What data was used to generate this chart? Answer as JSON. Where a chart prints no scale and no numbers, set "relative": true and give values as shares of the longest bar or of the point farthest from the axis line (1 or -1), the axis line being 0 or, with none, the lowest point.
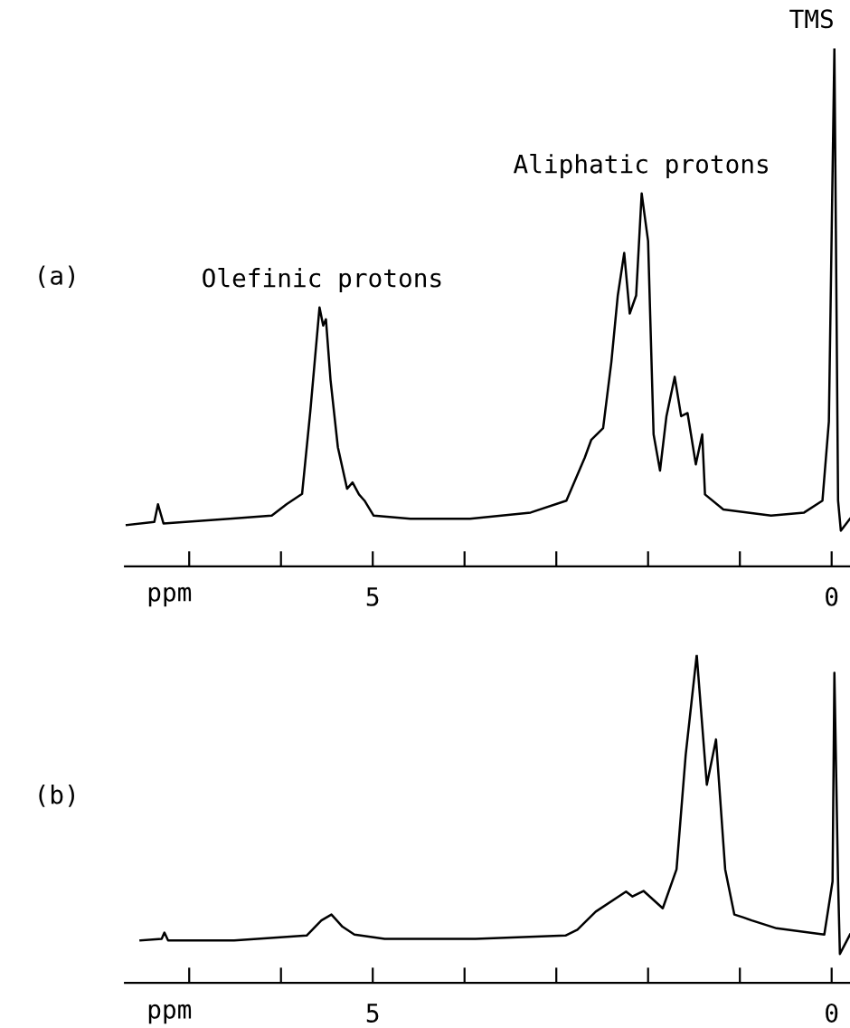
{
  "chart_data": [
    {
      "type": "line",
      "relative": true,
      "xlabel": "ppm",
      "xlim": [
        7.7,
        -0.2
      ],
      "xticks": [
        {
          "value": 7,
          "label": null
        },
        {
          "value": 6,
          "label": null
        },
        {
          "value": 5,
          "label": "5"
        },
        {
          "value": 4,
          "label": null
        },
        {
          "value": 3,
          "label": null
        },
        {
          "value": 2,
          "label": null
        },
        {
          "value": 1,
          "label": null
        },
        {
          "value": 0,
          "label": "0"
        }
      ],
      "tick_labels": "x",
      "grid": false,
      "legend": false,
      "series": [
        {
          "color": "#000000",
          "x": [
            7.68,
            7.38,
            7.34,
            7.28,
            6.56,
            6.1,
            5.94,
            5.77,
            5.68,
            5.58,
            5.54,
            5.51,
            5.46,
            5.38,
            5.28,
            5.22,
            5.15,
            5.09,
            4.99,
            4.59,
            3.94,
            3.28,
            2.89,
            2.69,
            2.62,
            2.49,
            2.4,
            2.33,
            2.26,
            2.2,
            2.13,
            2.07,
            2.0,
            1.94,
            1.87,
            1.8,
            1.71,
            1.64,
            1.57,
            1.48,
            1.41,
            1.38,
            1.18,
            0.66,
            0.3,
            0.1,
            0.03,
            -0.03,
            -0.07,
            -0.1,
            -0.2
          ],
          "values": [
            0.08,
            0.086,
            0.12,
            0.083,
            0.092,
            0.098,
            0.12,
            0.14,
            0.3,
            0.5,
            0.465,
            0.477,
            0.36,
            0.23,
            0.15,
            0.162,
            0.139,
            0.127,
            0.098,
            0.092,
            0.092,
            0.104,
            0.127,
            0.21,
            0.244,
            0.267,
            0.395,
            0.523,
            0.605,
            0.488,
            0.523,
            0.72,
            0.628,
            0.255,
            0.185,
            0.29,
            0.366,
            0.29,
            0.296,
            0.197,
            0.255,
            0.139,
            0.11,
            0.098,
            0.104,
            0.127,
            0.28,
            1.0,
            0.127,
            0.069,
            0.092
          ]
        }
      ],
      "annotations": [
        "(a)",
        {
          "text": "Olefinic protons",
          "x": 5.55,
          "y": 0.5
        },
        {
          "text": "Aliphatic protons",
          "x": 2.07,
          "y": 0.72
        },
        {
          "text": "TMS",
          "x": -0.03,
          "y": 1.0
        }
      ]
    },
    {
      "type": "line",
      "relative": true,
      "xlabel": "ppm",
      "xlim": [
        7.7,
        -0.2
      ],
      "xticks": [
        {
          "value": 7,
          "label": null
        },
        {
          "value": 6,
          "label": null
        },
        {
          "value": 5,
          "label": "5"
        },
        {
          "value": 4,
          "label": null
        },
        {
          "value": 3,
          "label": null
        },
        {
          "value": 2,
          "label": null
        },
        {
          "value": 1,
          "label": null
        },
        {
          "value": 0,
          "label": "0"
        }
      ],
      "tick_labels": "x",
      "grid": false,
      "legend": false,
      "series": [
        {
          "color": "#000000",
          "x": [
            7.53,
            7.3,
            7.27,
            7.23,
            6.51,
            5.72,
            5.56,
            5.45,
            5.33,
            5.2,
            4.87,
            3.88,
            2.9,
            2.77,
            2.57,
            2.24,
            2.17,
            2.05,
            1.84,
            1.69,
            1.59,
            1.47,
            1.36,
            1.26,
            1.16,
            1.06,
            0.96,
            0.87,
            0.6,
            0.08,
            -0.01,
            -0.03,
            -0.07,
            -0.09,
            -0.2
          ],
          "values": [
            0.129,
            0.134,
            0.153,
            0.129,
            0.129,
            0.144,
            0.19,
            0.208,
            0.171,
            0.147,
            0.134,
            0.134,
            0.144,
            0.162,
            0.217,
            0.278,
            0.263,
            0.28,
            0.227,
            0.346,
            0.696,
            1.0,
            0.604,
            0.742,
            0.346,
            0.208,
            0.199,
            0.19,
            0.166,
            0.147,
            0.309,
            0.945,
            0.309,
            0.088,
            0.147
          ]
        }
      ],
      "annotations": [
        "(b)"
      ]
    }
  ]
}
